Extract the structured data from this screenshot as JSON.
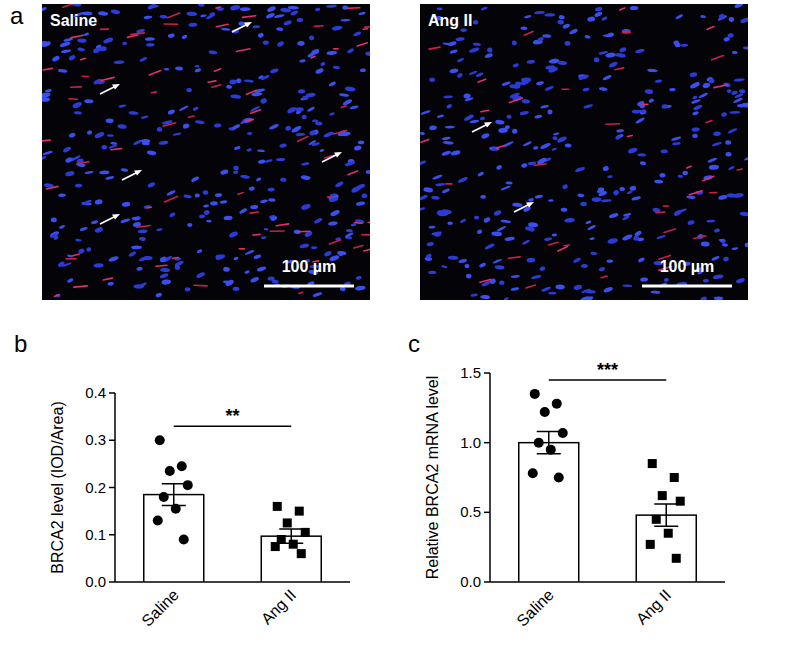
{
  "panel_a": {
    "panel": "a",
    "images": [
      {
        "label": "Saline",
        "scale_bar": "100 µm"
      },
      {
        "label": "Ang II",
        "scale_bar": "100 µm"
      }
    ]
  },
  "chart_data": [
    {
      "type": "bar",
      "panel": "b",
      "y_label": "BRCA2 level (IOD/Area)",
      "categories": [
        "Saline",
        "Ang II"
      ],
      "values": [
        0.185,
        0.097
      ],
      "errors": [
        0.023,
        0.015
      ],
      "points": [
        [
          0.3,
          0.245,
          0.235,
          0.205,
          0.18,
          0.155,
          0.13,
          0.09
        ],
        [
          0.16,
          0.15,
          0.125,
          0.105,
          0.09,
          0.08,
          0.075,
          0.06
        ]
      ],
      "significance": "**",
      "color": "#ffffff",
      "ylim": [
        0,
        0.4
      ],
      "yticks": [
        {
          "value": 0,
          "label": "0.0"
        },
        {
          "value": 0.1,
          "label": "0.1"
        },
        {
          "value": 0.2,
          "label": "0.2"
        },
        {
          "value": 0.3,
          "label": "0.3"
        },
        {
          "value": 0.4,
          "label": "0.4"
        }
      ],
      "grid": false
    },
    {
      "type": "bar",
      "panel": "c",
      "y_label": "Relative BRCA2 mRNA level",
      "categories": [
        "Saline",
        "Ang II"
      ],
      "values": [
        1.0,
        0.48
      ],
      "errors": [
        0.08,
        0.08
      ],
      "points": [
        [
          1.35,
          1.28,
          1.22,
          1.07,
          1.0,
          0.95,
          0.78,
          0.75
        ],
        [
          0.85,
          0.75,
          0.62,
          0.58,
          0.45,
          0.35,
          0.27,
          0.17
        ]
      ],
      "significance": "***",
      "color": "#ffffff",
      "ylim": [
        0,
        1.5
      ],
      "yticks": [
        {
          "value": 0,
          "label": "0.0"
        },
        {
          "value": 0.5,
          "label": "0.5"
        },
        {
          "value": 1.0,
          "label": "1.0"
        },
        {
          "value": 1.5,
          "label": "1.5"
        }
      ],
      "grid": false
    }
  ]
}
